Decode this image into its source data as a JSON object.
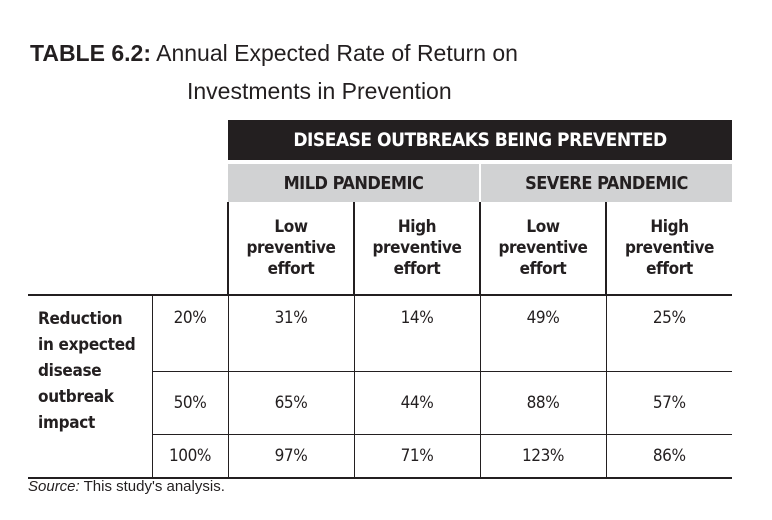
{
  "title": {
    "label": "TABLE 6.2:",
    "line1": "Annual Expected Rate of Return on",
    "line2": "Investments in Prevention"
  },
  "table": {
    "top_header": "DISEASE OUTBREAKS BEING PREVENTED",
    "groups": [
      "MILD PANDEMIC",
      "SEVERE PANDEMIC"
    ],
    "effort_headers": [
      [
        "Low",
        "preventive",
        "effort"
      ],
      [
        "High",
        "preventive",
        "effort"
      ],
      [
        "Low",
        "preventive",
        "effort"
      ],
      [
        "High",
        "preventive",
        "effort"
      ]
    ],
    "row_label_lines": [
      "Reduction",
      "in expected",
      "disease",
      "outbreak",
      "impact"
    ],
    "rows": [
      {
        "pct": "20%",
        "values": [
          "31%",
          "14%",
          "49%",
          "25%"
        ]
      },
      {
        "pct": "50%",
        "values": [
          "65%",
          "44%",
          "88%",
          "57%"
        ]
      },
      {
        "pct": "100%",
        "values": [
          "97%",
          "71%",
          "123%",
          "86%"
        ]
      }
    ]
  },
  "source": {
    "label": "Source:",
    "text": "This study's analysis."
  },
  "colors": {
    "dark_header": "#231f20",
    "gray_header": "#d1d2d3",
    "text": "#231f20"
  }
}
